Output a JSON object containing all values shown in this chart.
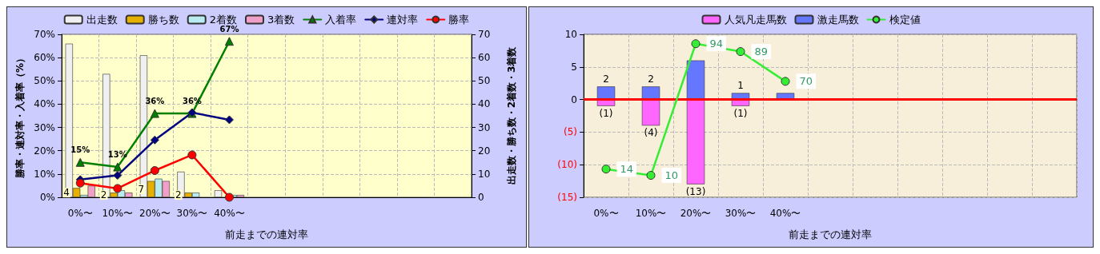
{
  "chart_data": [
    {
      "type": "bar",
      "xlabel": "前走までの連対率",
      "ylabel": "勝率・連対率・入着率（%）",
      "y2label": "出走数・勝ち数・2着数・3着数",
      "categories": [
        "0%〜",
        "10%〜",
        "20%〜",
        "30%〜",
        "40%〜",
        null,
        null,
        null,
        null,
        null,
        null
      ],
      "series": [
        {
          "name": "出走数",
          "axis": "y2",
          "color": "#f0f0f0",
          "values": [
            66,
            53,
            61,
            11,
            3,
            null,
            null,
            null,
            null,
            null,
            null
          ]
        },
        {
          "name": "勝ち数",
          "axis": "y2",
          "color": "#e6b000",
          "values": [
            4,
            2,
            7,
            2,
            0,
            null,
            null,
            null,
            null,
            null,
            null
          ],
          "value_labels": [
            "4",
            "2",
            "7",
            "2",
            null,
            null,
            null,
            null,
            null,
            null,
            null
          ]
        },
        {
          "name": "2着数",
          "axis": "y2",
          "color": "#b8ecf0",
          "values": [
            1,
            3,
            8,
            2,
            1,
            null,
            null,
            null,
            null,
            null,
            null
          ]
        },
        {
          "name": "3着数",
          "axis": "y2",
          "color": "#f0a0c8",
          "values": [
            5,
            2,
            7,
            0,
            1,
            null,
            null,
            null,
            null,
            null,
            null
          ]
        },
        {
          "name": "入着率",
          "type": "line",
          "marker": "triangle",
          "color": "#008000",
          "values": [
            15,
            13,
            36,
            36,
            67,
            null,
            null,
            null,
            null,
            null,
            null
          ],
          "value_labels": [
            "15%",
            "13%",
            "36%",
            "36%",
            "67%",
            null,
            null,
            null,
            null,
            null,
            null
          ]
        },
        {
          "name": "連対率",
          "type": "line",
          "marker": "diamond",
          "color": "#000080",
          "values": [
            7.6,
            9.4,
            24.6,
            36.4,
            33.3,
            null,
            null,
            null,
            null,
            null,
            null
          ]
        },
        {
          "name": "勝率",
          "type": "line",
          "marker": "circle",
          "color": "#ff0000",
          "values": [
            6.1,
            3.8,
            11.5,
            18.2,
            0,
            null,
            null,
            null,
            null,
            null,
            null
          ]
        }
      ],
      "ylim": [
        0,
        70
      ],
      "yticks": [
        {
          "value": 0,
          "label": "0%"
        },
        {
          "value": 10,
          "label": "10%"
        },
        {
          "value": 20,
          "label": "20%"
        },
        {
          "value": 30,
          "label": "30%"
        },
        {
          "value": 40,
          "label": "40%"
        },
        {
          "value": 50,
          "label": "50%"
        },
        {
          "value": 60,
          "label": "60%"
        },
        {
          "value": 70,
          "label": "70%"
        }
      ],
      "y2lim": [
        0,
        70
      ],
      "y2ticks": [
        0,
        10,
        20,
        30,
        40,
        50,
        60,
        70
      ],
      "grid": true,
      "legend": "top"
    },
    {
      "type": "bar",
      "xlabel": "前走までの連対率",
      "stacked": true,
      "categories": [
        "0%〜",
        "10%〜",
        "20%〜",
        "30%〜",
        "40%〜",
        null,
        null,
        null,
        null,
        null,
        null
      ],
      "series": [
        {
          "name": "人気凡走馬数",
          "color": "#ff66ff",
          "values": [
            -1,
            -4,
            -13,
            -1,
            0,
            null,
            null,
            null,
            null,
            null,
            null
          ],
          "value_labels": [
            "(1)",
            "(4)",
            "(13)",
            "(1)",
            null,
            null,
            null,
            null,
            null,
            null,
            null
          ]
        },
        {
          "name": "激走馬数",
          "color": "#6677ff",
          "values": [
            2,
            2,
            6,
            1,
            1,
            null,
            null,
            null,
            null,
            null,
            null
          ],
          "value_labels": [
            "2",
            "2",
            null,
            "1",
            null,
            null,
            null,
            null,
            null,
            null,
            null
          ]
        },
        {
          "name": "検定値",
          "type": "line",
          "axis": "y2",
          "marker": "circle",
          "color": "#33ee33",
          "values": [
            14,
            10,
            94,
            89,
            70,
            null,
            null,
            null,
            null,
            null,
            null
          ],
          "value_labels": [
            "14",
            "10",
            "94",
            "89",
            "70",
            null,
            null,
            null,
            null,
            null,
            null
          ]
        }
      ],
      "y2lim": [
        -4,
        100
      ],
      "ylim": [
        -15,
        10
      ],
      "yticks": [
        {
          "value": -15,
          "label": "(15)"
        },
        {
          "value": -10,
          "label": "(10)"
        },
        {
          "value": -5,
          "label": "(5)"
        },
        0,
        5,
        10
      ],
      "ref_lines": [
        {
          "axis": "y",
          "value": 0,
          "color": "#ff0000"
        }
      ],
      "grid": true,
      "legend": "top"
    }
  ]
}
